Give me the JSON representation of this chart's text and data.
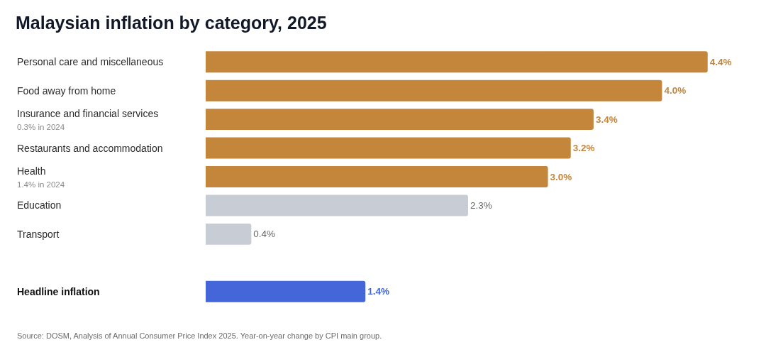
{
  "chart_data": {
    "type": "bar",
    "orientation": "horizontal",
    "title": "Malaysian inflation by category, 2025",
    "categories": [
      "Personal care and miscellaneous",
      "Food away from home",
      "Insurance and financial services\n0.3% in 2024",
      "Restaurants and accommodation",
      "Health\n1.4% in 2024",
      "Education",
      "Transport",
      null,
      "Headline inflation"
    ],
    "values": [
      4.4,
      4.0,
      3.4,
      3.2,
      3.0,
      2.3,
      0.4,
      null,
      1.4
    ],
    "colors": [
      "#c4863b",
      "#c4863b",
      "#c4863b",
      "#c4863b",
      "#c4863b",
      "#c8ccd4",
      "#c8ccd4",
      null,
      "#4466d8"
    ],
    "value_labels": [
      "4.4%",
      "4.0%",
      "3.4%",
      "3.2%",
      "3.0%",
      "2.3%",
      "0.4%",
      null,
      "1.4%"
    ],
    "tick_labels": "y",
    "annotations": [
      "Source: DOSM, Analysis of Annual Consumer Price Index 2025. Year-on-year change by CPI main group."
    ]
  }
}
